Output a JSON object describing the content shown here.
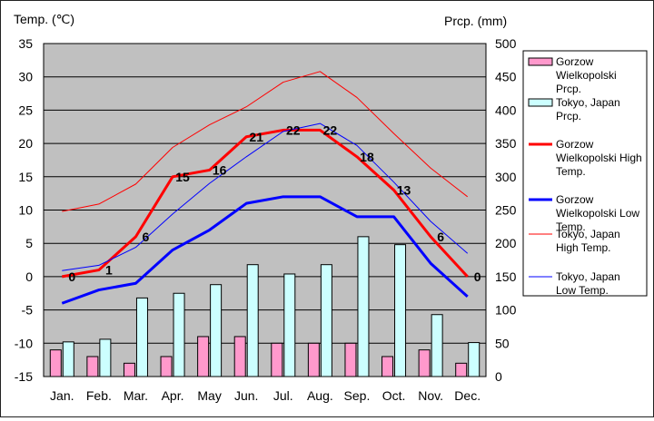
{
  "chart_data": {
    "type": "bar+line",
    "left_axis_label": "Temp. (℃)",
    "right_axis_label": "Prcp. (mm)",
    "categories": [
      "Jan.",
      "Feb.",
      "Mar.",
      "Apr.",
      "May",
      "Jun.",
      "Jul.",
      "Aug.",
      "Sep.",
      "Oct.",
      "Nov.",
      "Dec."
    ],
    "y_left": {
      "min": -15,
      "max": 35,
      "ticks": [
        "35",
        "30",
        "25",
        "20",
        "15",
        "10",
        "5",
        "0",
        "-5",
        "-10",
        "-15"
      ]
    },
    "y_right": {
      "min": 0,
      "max": 500,
      "ticks": [
        "500",
        "450",
        "400",
        "350",
        "300",
        "250",
        "200",
        "150",
        "100",
        "50",
        "0"
      ]
    },
    "grid": "horizontal",
    "legend_position": "right",
    "bar_series": [
      {
        "name": "Gorzow Wielkopolski Prcp.",
        "color": "#ff99cc",
        "values": [
          40,
          30,
          20,
          30,
          60,
          60,
          50,
          50,
          50,
          30,
          40,
          20
        ]
      },
      {
        "name": "Tokyo, Japan Prcp.",
        "color": "#ccffff",
        "values": [
          52,
          56,
          118,
          125,
          138,
          168,
          154,
          168,
          210,
          198,
          93,
          51
        ]
      }
    ],
    "line_series": [
      {
        "name": "Gorzow Wielkopolski High Temp.",
        "color": "#ff0000",
        "width": "thick",
        "values": [
          0,
          1,
          6,
          15,
          16,
          21,
          22,
          22,
          18,
          13,
          6,
          0
        ],
        "labels": [
          "0",
          "1",
          "6",
          "15",
          "16",
          "21",
          "22",
          "22",
          "18",
          "13",
          "6",
          "0"
        ]
      },
      {
        "name": "Gorzow Wielkopolski Low Temp.",
        "color": "#0000ff",
        "width": "thick",
        "values": [
          -4,
          -2,
          -1,
          4,
          7,
          11,
          12,
          12,
          9,
          9,
          2,
          -3
        ]
      },
      {
        "name": "Tokyo, Japan High Temp.",
        "color": "#ff0000",
        "width": "thin",
        "values": [
          9.8,
          10.9,
          13.9,
          19.4,
          22.8,
          25.5,
          29.2,
          30.8,
          26.9,
          21.5,
          16.3,
          12.0
        ]
      },
      {
        "name": "Tokyo, Japan Low Temp.",
        "color": "#0000ff",
        "width": "thin",
        "values": [
          0.9,
          1.7,
          4.4,
          9.4,
          14.0,
          18.0,
          21.8,
          23.0,
          19.7,
          14.2,
          8.3,
          3.5
        ]
      }
    ],
    "legend": [
      {
        "kind": "bar",
        "color": "#ff99cc",
        "lines": [
          "Gorzow",
          "Wielkopolski",
          "Prcp."
        ]
      },
      {
        "kind": "bar",
        "color": "#ccffff",
        "lines": [
          "Tokyo, Japan",
          "Prcp."
        ]
      },
      {
        "kind": "line",
        "color": "#ff0000",
        "width": "thick",
        "lines": [
          "Gorzow",
          "Wielkopolski High",
          "Temp."
        ]
      },
      {
        "kind": "line",
        "color": "#0000ff",
        "width": "thick",
        "lines": [
          "Gorzow",
          "Wielkopolski Low",
          "Temp."
        ]
      },
      {
        "kind": "line",
        "color": "#ff0000",
        "width": "thin",
        "lines": [
          "Tokyo, Japan",
          "High Temp."
        ]
      },
      {
        "kind": "line",
        "color": "#0000ff",
        "width": "thin",
        "lines": [
          "Tokyo, Japan",
          "Low Temp."
        ]
      }
    ],
    "plot_bg": "#c0c0c0"
  }
}
